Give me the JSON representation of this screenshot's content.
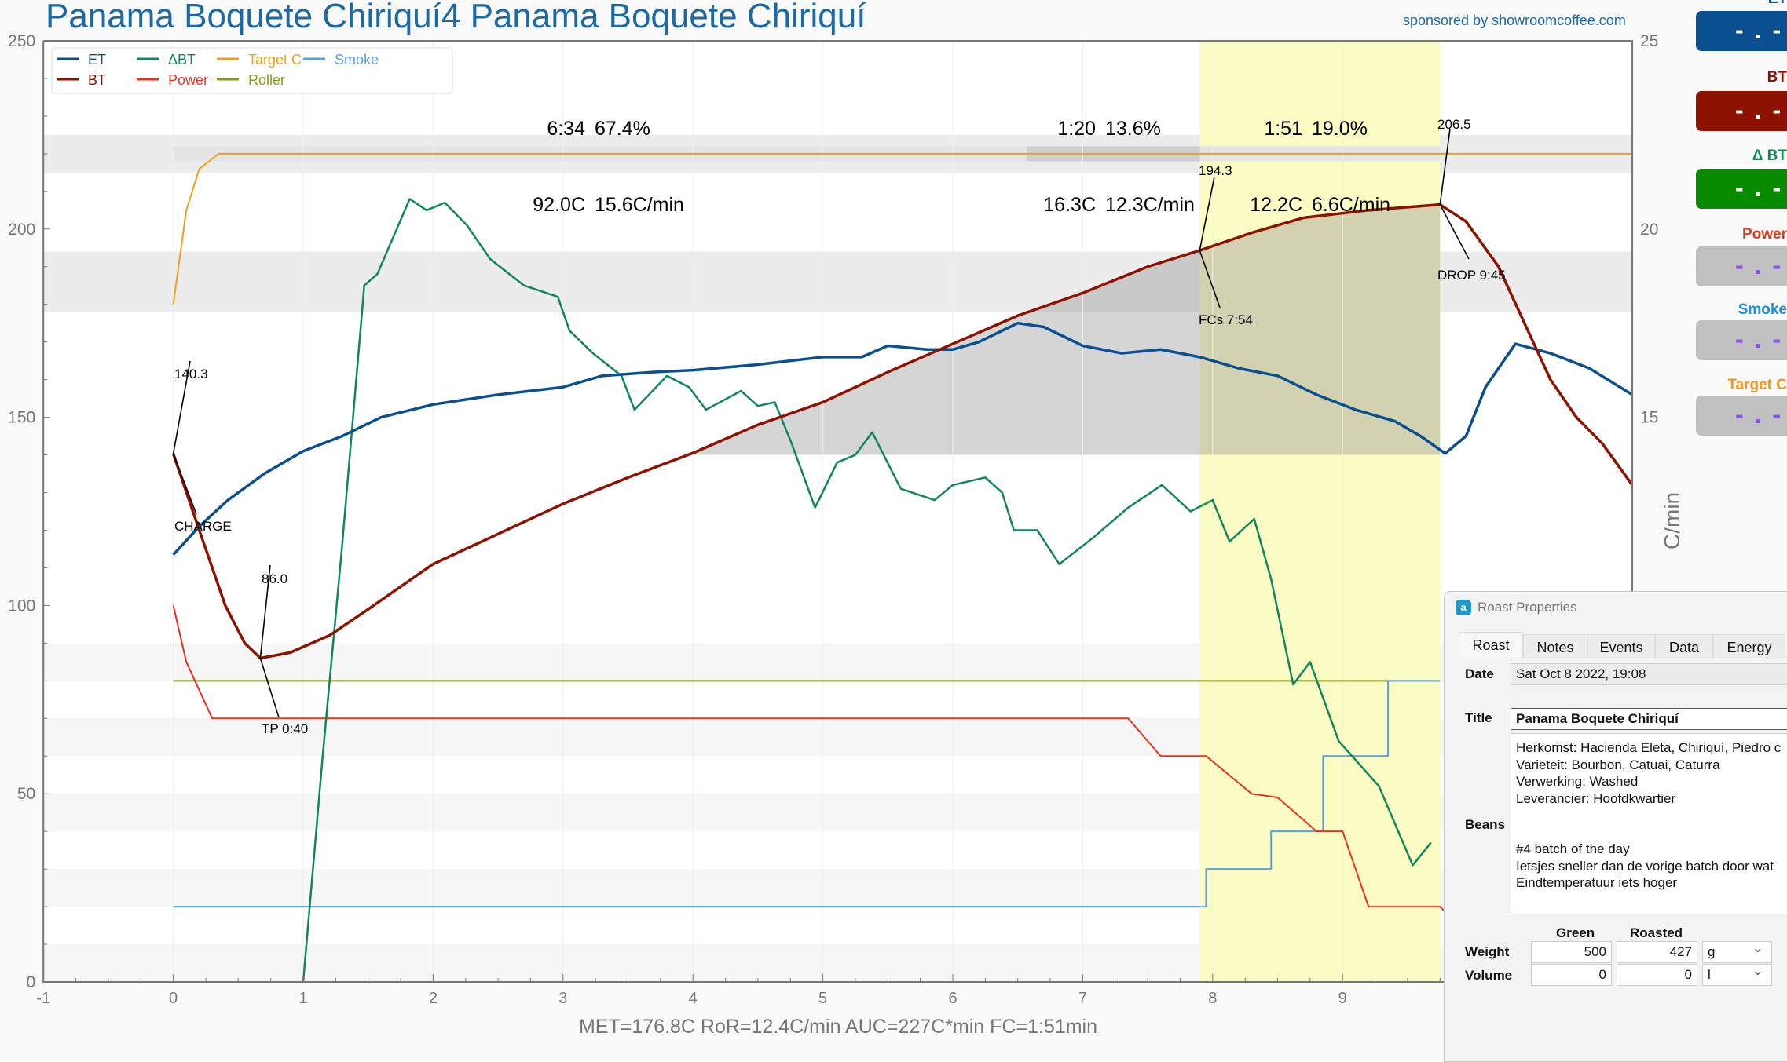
{
  "title": "Panama Boquete Chiriquí4 Panama Boquete Chiriquí",
  "sponsor": "sponsored by showroomcoffee.com",
  "lcds": [
    {
      "label": "ET",
      "value": "-.-",
      "color": "#0a4f8f",
      "text": "#0a4f8f"
    },
    {
      "label": "BT",
      "value": "-.-",
      "color": "#8e1200",
      "text": "#8e1200"
    },
    {
      "label": "Δ BT",
      "value": "-.-",
      "color": "#0a8a00",
      "text": "#0a8a55"
    },
    {
      "label": "Power",
      "value": "-.-",
      "color": "#c0c0c0",
      "text": "#e23a1e"
    },
    {
      "label": "Smoke",
      "value": "-.-",
      "color": "#c0c0c0",
      "text": "#1e90e0"
    },
    {
      "label": "Target C",
      "value": "-.-",
      "color": "#c0c0c0",
      "text": "#f0961e"
    }
  ],
  "chart_data": {
    "type": "line",
    "xlim": [
      -1,
      11.23
    ],
    "ylim": [
      0,
      250
    ],
    "y2lim": [
      0,
      25
    ],
    "xticks": [
      "-1",
      "0",
      "1",
      "2",
      "3",
      "4",
      "5",
      "6",
      "7",
      "8",
      "9"
    ],
    "yticks": [
      "0",
      "50",
      "100",
      "150",
      "200",
      "250"
    ],
    "y2ticks": [
      "15",
      "20",
      "25"
    ],
    "y2label": "C/min",
    "legend": [
      {
        "name": "ET",
        "color": "#0a4f8f"
      },
      {
        "name": "BT",
        "color": "#8e1200"
      },
      {
        "name": "ΔBT",
        "color": "#10875a"
      },
      {
        "name": "Power",
        "color": "#e8321e"
      },
      {
        "name": "Target C",
        "color": "#f0a020"
      },
      {
        "name": "Roller",
        "color": "#8a9a1a"
      },
      {
        "name": "Smoke",
        "color": "#5b9ee8"
      }
    ],
    "series": {
      "ET": [
        [
          0,
          113.5
        ],
        [
          0.2,
          121
        ],
        [
          0.42,
          128
        ],
        [
          0.7,
          135
        ],
        [
          1,
          141
        ],
        [
          1.3,
          145
        ],
        [
          1.6,
          150
        ],
        [
          2,
          153.4
        ],
        [
          2.5,
          156
        ],
        [
          3,
          158
        ],
        [
          3.3,
          161
        ],
        [
          3.7,
          162
        ],
        [
          4,
          162.5
        ],
        [
          4.5,
          164
        ],
        [
          5,
          166
        ],
        [
          5.3,
          166
        ],
        [
          5.5,
          169
        ],
        [
          5.8,
          168
        ],
        [
          6,
          168
        ],
        [
          6.2,
          170
        ],
        [
          6.5,
          175
        ],
        [
          6.7,
          174
        ],
        [
          7,
          169
        ],
        [
          7.3,
          167
        ],
        [
          7.6,
          168
        ],
        [
          7.9,
          166
        ],
        [
          8.2,
          163
        ],
        [
          8.5,
          161
        ],
        [
          8.8,
          156
        ],
        [
          9.1,
          152
        ],
        [
          9.4,
          149
        ],
        [
          9.6,
          145
        ],
        [
          9.79,
          140.4
        ],
        [
          9.95,
          145
        ],
        [
          10.1,
          158
        ],
        [
          10.33,
          169.5
        ],
        [
          10.6,
          167
        ],
        [
          10.9,
          163
        ],
        [
          11.23,
          156
        ]
      ],
      "BT": [
        [
          0,
          140.3
        ],
        [
          0.2,
          120
        ],
        [
          0.4,
          100
        ],
        [
          0.55,
          90
        ],
        [
          0.67,
          86
        ],
        [
          0.9,
          87.5
        ],
        [
          1.2,
          92
        ],
        [
          1.5,
          99
        ],
        [
          2,
          111
        ],
        [
          2.5,
          119
        ],
        [
          3,
          127
        ],
        [
          3.5,
          134
        ],
        [
          4,
          140.5
        ],
        [
          4.5,
          148
        ],
        [
          5,
          154
        ],
        [
          5.5,
          162
        ],
        [
          6,
          169.5
        ],
        [
          6.5,
          177
        ],
        [
          7,
          183
        ],
        [
          7.5,
          190
        ],
        [
          7.9,
          194.3
        ],
        [
          8.3,
          199
        ],
        [
          8.7,
          203
        ],
        [
          9.2,
          205
        ],
        [
          9.75,
          206.5
        ],
        [
          9.95,
          202
        ],
        [
          10.2,
          190
        ],
        [
          10.4,
          175
        ],
        [
          10.6,
          160
        ],
        [
          10.8,
          150
        ],
        [
          11,
          143
        ],
        [
          11.23,
          132
        ]
      ],
      "DeltaBT": [
        [
          1,
          0
        ],
        [
          1.15,
          6
        ],
        [
          1.3,
          11.6
        ],
        [
          1.47,
          18.5
        ],
        [
          1.57,
          18.8
        ],
        [
          1.82,
          20.8
        ],
        [
          1.95,
          20.5
        ],
        [
          2.09,
          20.7
        ],
        [
          2.26,
          20.1
        ],
        [
          2.44,
          19.2
        ],
        [
          2.7,
          18.5
        ],
        [
          2.96,
          18.2
        ],
        [
          3.05,
          17.3
        ],
        [
          3.23,
          16.7
        ],
        [
          3.45,
          16.1
        ],
        [
          3.55,
          15.2
        ],
        [
          3.8,
          16.1
        ],
        [
          3.97,
          15.8
        ],
        [
          4.1,
          15.2
        ],
        [
          4.37,
          15.7
        ],
        [
          4.5,
          15.3
        ],
        [
          4.63,
          15.4
        ],
        [
          4.76,
          14.3
        ],
        [
          4.94,
          12.6
        ],
        [
          5.11,
          13.8
        ],
        [
          5.25,
          14
        ],
        [
          5.38,
          14.6
        ],
        [
          5.6,
          13.1
        ],
        [
          5.86,
          12.8
        ],
        [
          6,
          13.2
        ],
        [
          6.25,
          13.4
        ],
        [
          6.38,
          13
        ],
        [
          6.47,
          12
        ],
        [
          6.65,
          12
        ],
        [
          6.82,
          11.1
        ],
        [
          7.08,
          11.8
        ],
        [
          7.35,
          12.6
        ],
        [
          7.61,
          13.2
        ],
        [
          7.83,
          12.5
        ],
        [
          8.0,
          12.8
        ],
        [
          8.13,
          11.7
        ],
        [
          8.32,
          12.3
        ],
        [
          8.45,
          10.7
        ],
        [
          8.62,
          7.9
        ],
        [
          8.75,
          8.5
        ],
        [
          8.97,
          6.4
        ],
        [
          9.28,
          5.2
        ],
        [
          9.54,
          3.1
        ],
        [
          9.68,
          3.7
        ]
      ],
      "Power": [
        [
          0,
          100
        ],
        [
          0.1,
          85
        ],
        [
          0.3,
          70
        ],
        [
          7.35,
          70
        ],
        [
          7.6,
          60
        ],
        [
          7.95,
          60
        ],
        [
          8.3,
          50
        ],
        [
          8.5,
          49
        ],
        [
          8.8,
          40
        ],
        [
          9.0,
          40
        ],
        [
          9.2,
          20
        ],
        [
          9.75,
          20
        ],
        [
          10.05,
          10
        ]
      ],
      "TargetC": [
        [
          0,
          180
        ],
        [
          0.1,
          205
        ],
        [
          0.2,
          216
        ],
        [
          0.35,
          220
        ],
        [
          11.23,
          220
        ]
      ],
      "Roller": [
        [
          0,
          80
        ],
        [
          9.75,
          80
        ]
      ],
      "Smoke": [
        [
          0,
          20
        ],
        [
          7.95,
          20
        ],
        [
          7.95,
          30
        ],
        [
          8.45,
          30
        ],
        [
          8.45,
          40
        ],
        [
          8.85,
          40
        ],
        [
          8.85,
          60
        ],
        [
          9.35,
          60
        ],
        [
          9.35,
          80
        ],
        [
          9.75,
          80
        ]
      ]
    },
    "phases": [
      {
        "time": "6:34",
        "pct": "67.4%",
        "delta": "92.0C",
        "ror": "15.6C/min"
      },
      {
        "time": "1:20",
        "pct": "13.6%",
        "delta": "16.3C",
        "ror": "12.3C/min"
      },
      {
        "time": "1:51",
        "pct": "19.0%",
        "delta": "12.2C",
        "ror": "6.6C/min"
      }
    ],
    "events": {
      "charge_temp": "140.3",
      "charge": "CHARGE",
      "tp_temp": "86.0",
      "tp": "TP 0:40",
      "fcs_temp": "194.3",
      "fcs": "FCs 7:54",
      "drop_temp": "206.5",
      "drop": "DROP 9:45"
    },
    "stats": "MET=176.8C   RoR=12.4C/min   AUC=227C*min   FC=1:51min"
  },
  "dialog": {
    "title": "Roast Properties",
    "tabs": [
      "Roast",
      "Notes",
      "Events",
      "Data",
      "Energy"
    ],
    "date_label": "Date",
    "date": "Sat Oct 8 2022, 19:08",
    "title_label": "Title",
    "title_value": "Panama Boquete Chiriquí",
    "beans_label": "Beans",
    "beans_lines": [
      "Herkomst: Hacienda Eleta, Chiriquí, Piedro c",
      "Varieteit: Bourbon, Catuai, Caturra",
      "Verwerking: Washed",
      "Leverancier: Hoofdkwartier",
      "",
      "",
      "#4 batch of the day",
      "Ietsjes sneller dan de vorige batch door wat",
      "Eindtemperatuur iets hoger"
    ],
    "green_label": "Green",
    "roasted_label": "Roasted",
    "weight_label": "Weight",
    "weight_green": "500",
    "weight_roasted": "427",
    "weight_unit": "g",
    "volume_label": "Volume",
    "volume_green": "0",
    "volume_roasted": "0",
    "volume_unit": "l"
  }
}
